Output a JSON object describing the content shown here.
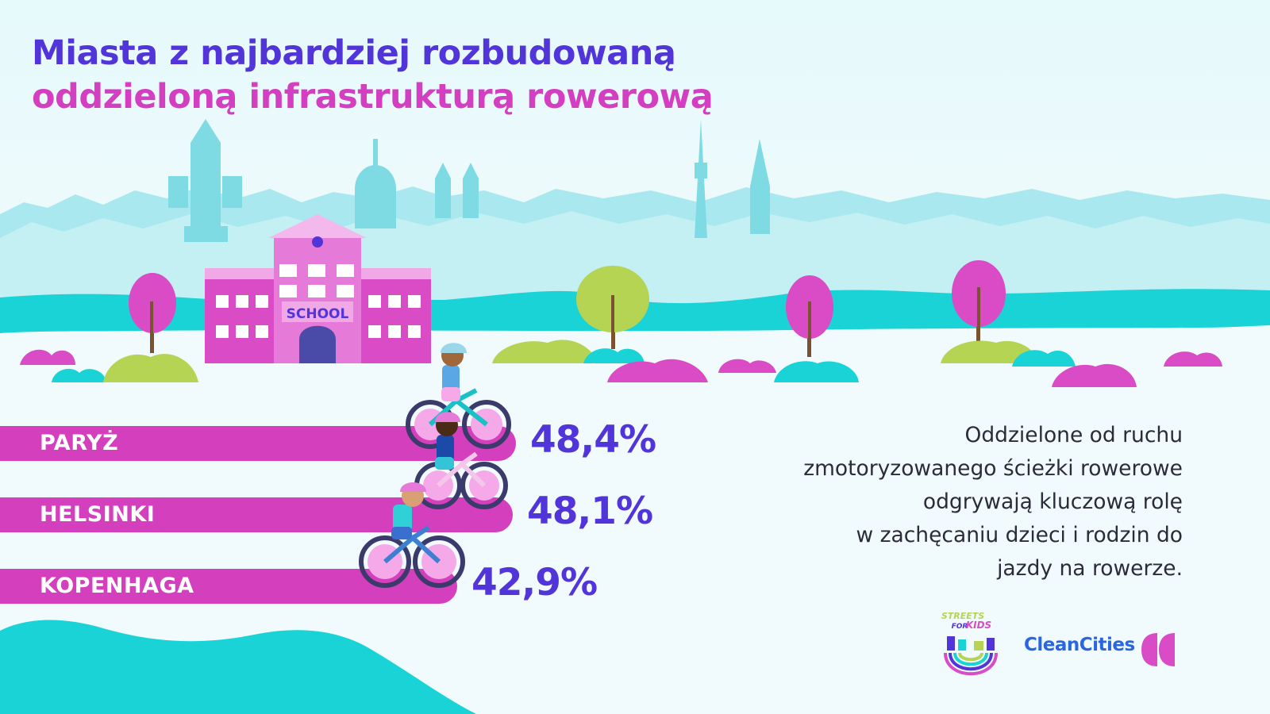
{
  "title": {
    "line1": "Miasta z najbardziej rozbudowaną",
    "line2": "oddzieloną infrastrukturą rowerową"
  },
  "school_sign": "SCHOOL",
  "chart_data": {
    "type": "bar",
    "categories": [
      "PARYŻ",
      "HELSINKI",
      "KOPENHAGA"
    ],
    "values": [
      48.4,
      48.1,
      42.9
    ],
    "value_labels": [
      "48,4%",
      "48,1%",
      "42,9%"
    ],
    "unit": "%"
  },
  "description": [
    "Oddzielone od ruchu",
    "zmotoryzowanego ścieżki rowerowe",
    "odgrywają kluczową rolę",
    "w zachęcaniu dzieci i rodzin do",
    "jazdy na rowerze."
  ],
  "logos": {
    "streets_for_kids": {
      "line1": "STREETS",
      "line2": "FOR",
      "line3": "KIDS"
    },
    "clean_cities": "CleanCities"
  },
  "colors": {
    "purple": "#5235d8",
    "magenta": "#d43fbd",
    "teal": "#19d3d6",
    "skyline": "#9be4ea",
    "green": "#b5d454"
  },
  "icons": [
    "school-building",
    "tree",
    "bush",
    "child-cyclist",
    "city-skyline",
    "clean-cities-logo",
    "streets-for-kids-logo"
  ]
}
